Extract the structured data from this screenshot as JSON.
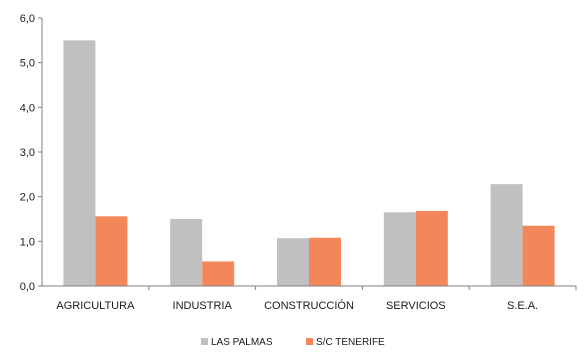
{
  "chart_data": {
    "type": "bar",
    "categories": [
      "AGRICULTURA",
      "INDUSTRIA",
      "CONSTRUCCIÓN",
      "SERVICIOS",
      "S.E.A."
    ],
    "series": [
      {
        "name": "LAS PALMAS",
        "values": [
          5.5,
          1.5,
          1.07,
          1.65,
          2.28
        ],
        "color": "#c0c0c0"
      },
      {
        "name": "S/C TENERIFE",
        "values": [
          1.56,
          0.55,
          1.08,
          1.68,
          1.35
        ],
        "color": "#f4875a"
      }
    ],
    "ylim": [
      0,
      6
    ],
    "yticks": [
      "0,0",
      "1,0",
      "2,0",
      "3,0",
      "4,0",
      "5,0",
      "6,0"
    ],
    "grid": false,
    "legend_position": "bottom"
  }
}
